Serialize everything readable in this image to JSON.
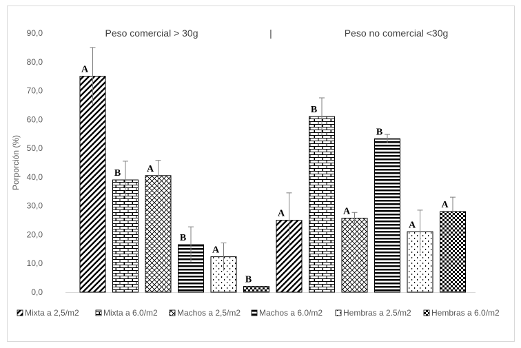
{
  "chart_data": {
    "type": "bar",
    "ylabel": "Porporción (%)",
    "ylim": [
      0,
      90
    ],
    "y_ticks": [
      "0,0",
      "10,0",
      "20,0",
      "30,0",
      "40,0",
      "50,0",
      "60,0",
      "70,0",
      "80,0",
      "90,0"
    ],
    "groups": [
      {
        "label": "Peso comercial > 30g",
        "values": [
          75,
          39,
          40.5,
          16.5,
          12.3,
          2
        ],
        "errors": [
          10,
          6.5,
          5.3,
          6.2,
          4.8,
          0
        ],
        "letters": [
          "A",
          "B",
          "A",
          "B",
          "A",
          "B"
        ]
      },
      {
        "label": "Peso no comercial <30g",
        "values": [
          25,
          61,
          25.7,
          53.3,
          21,
          28
        ],
        "errors": [
          9.5,
          6.5,
          2,
          1.5,
          7.5,
          5
        ],
        "letters": [
          "A",
          "B",
          "A",
          "B",
          "A",
          "A"
        ]
      }
    ],
    "separator": "|",
    "series": [
      {
        "name": "Mixta a 2,5/m2",
        "pattern": "diag"
      },
      {
        "name": "Mixta a 6.0/m2",
        "pattern": "brick"
      },
      {
        "name": "Machos a 2,5/m2",
        "pattern": "cross"
      },
      {
        "name": "Machos a 6.0/m2",
        "pattern": "hstripe"
      },
      {
        "name": "Hembras a 2.5/m2",
        "pattern": "dots"
      },
      {
        "name": "Hembras a 6.0/m2",
        "pattern": "check"
      }
    ],
    "colors": {
      "bar_stroke": "#000000",
      "error_bar": "#7f7f7f",
      "axis": "#d9d9d9"
    },
    "grid": false,
    "legend_position": "bottom"
  }
}
